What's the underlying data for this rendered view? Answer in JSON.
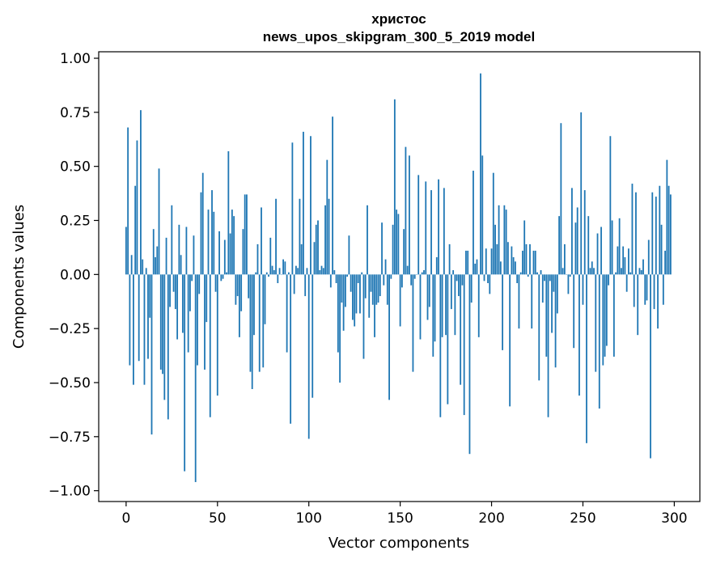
{
  "chart_data": {
    "type": "bar",
    "title_line1": "христос",
    "title_line2": "news_upos_skipgram_300_5_2019 model",
    "xlabel": "Vector components",
    "ylabel": "Components values",
    "xlim": [
      -15,
      314
    ],
    "ylim": [
      -1.05,
      1.03
    ],
    "xticks": [
      0,
      50,
      100,
      150,
      200,
      250,
      300
    ],
    "xtick_labels": [
      "0",
      "50",
      "100",
      "150",
      "200",
      "250",
      "300"
    ],
    "yticks": [
      1.0,
      0.75,
      0.5,
      0.25,
      0.0,
      -0.25,
      -0.5,
      -0.75,
      -1.0
    ],
    "ytick_labels": [
      "1.00",
      "0.75",
      "0.50",
      "0.25",
      "0.00",
      "−0.25",
      "−0.50",
      "−0.75",
      "−1.00"
    ],
    "color": "#1f77b4",
    "values": [
      0.22,
      0.68,
      -0.42,
      0.09,
      -0.51,
      0.41,
      0.62,
      -0.4,
      0.76,
      0.07,
      -0.51,
      0.03,
      -0.39,
      -0.2,
      -0.74,
      0.21,
      0.08,
      0.13,
      0.49,
      -0.44,
      -0.46,
      -0.58,
      0.17,
      -0.67,
      -0.15,
      0.32,
      -0.08,
      -0.16,
      -0.3,
      0.23,
      0.09,
      -0.27,
      -0.91,
      0.22,
      -0.36,
      -0.17,
      -0.03,
      0.18,
      -0.96,
      -0.42,
      -0.09,
      0.38,
      0.47,
      -0.44,
      -0.22,
      0.3,
      -0.66,
      0.39,
      0.29,
      -0.08,
      -0.56,
      0.2,
      -0.03,
      -0.02,
      0.16,
      0.01,
      0.57,
      0.19,
      0.3,
      0.27,
      -0.14,
      -0.1,
      -0.29,
      -0.17,
      0.21,
      0.37,
      0.37,
      -0.11,
      -0.45,
      -0.53,
      -0.28,
      0.01,
      0.14,
      -0.45,
      0.31,
      -0.43,
      -0.23,
      0.01,
      -0.01,
      0.17,
      0.04,
      0.02,
      0.35,
      -0.04,
      0.03,
      0.0,
      0.07,
      0.06,
      -0.36,
      0.01,
      -0.69,
      0.61,
      -0.09,
      0.04,
      0.03,
      0.35,
      0.14,
      0.66,
      -0.1,
      0.03,
      -0.76,
      0.64,
      -0.57,
      0.15,
      0.23,
      0.25,
      0.02,
      0.04,
      0.03,
      0.32,
      0.53,
      0.35,
      -0.06,
      0.73,
      0.02,
      -0.04,
      -0.36,
      -0.5,
      -0.13,
      -0.26,
      -0.15,
      -0.01,
      0.18,
      -0.08,
      -0.21,
      -0.24,
      -0.18,
      -0.04,
      -0.18,
      0.01,
      -0.39,
      -0.11,
      0.32,
      -0.2,
      -0.08,
      -0.14,
      -0.29,
      -0.14,
      -0.13,
      -0.1,
      0.24,
      -0.05,
      0.07,
      -0.14,
      -0.58,
      -0.02,
      0.23,
      0.81,
      0.3,
      0.28,
      -0.24,
      -0.06,
      0.21,
      0.59,
      0.04,
      0.55,
      -0.05,
      -0.45,
      -0.02,
      0.0,
      0.46,
      -0.3,
      0.01,
      0.02,
      0.43,
      -0.21,
      -0.15,
      0.39,
      -0.38,
      -0.31,
      0.08,
      0.44,
      -0.66,
      -0.29,
      0.4,
      -0.28,
      -0.6,
      0.14,
      -0.16,
      0.02,
      -0.28,
      -0.03,
      -0.1,
      -0.51,
      -0.05,
      -0.65,
      0.11,
      0.11,
      -0.83,
      -0.13,
      0.48,
      0.05,
      0.07,
      -0.29,
      0.93,
      0.55,
      -0.03,
      0.12,
      -0.04,
      -0.09,
      0.12,
      0.47,
      0.23,
      0.14,
      0.32,
      0.06,
      -0.35,
      0.32,
      0.3,
      0.15,
      -0.61,
      0.13,
      0.08,
      0.06,
      -0.04,
      -0.25,
      0.01,
      0.11,
      0.25,
      0.14,
      -0.01,
      0.14,
      -0.25,
      0.11,
      0.11,
      0.01,
      -0.49,
      0.02,
      -0.13,
      -0.03,
      -0.38,
      -0.66,
      -0.03,
      -0.27,
      -0.08,
      -0.43,
      -0.18,
      0.27,
      0.7,
      0.03,
      0.14,
      0.0,
      -0.09,
      -0.01,
      0.4,
      -0.34,
      0.24,
      0.31,
      -0.56,
      0.75,
      -0.14,
      0.39,
      -0.78,
      0.27,
      0.03,
      0.06,
      0.03,
      -0.45,
      0.19,
      -0.62,
      0.22,
      -0.42,
      -0.38,
      -0.33,
      -0.05,
      0.64,
      0.25,
      -0.38,
      0.01,
      0.13,
      0.26,
      0.03,
      0.13,
      0.08,
      -0.08,
      0.12,
      0.01,
      0.42,
      -0.15,
      0.38,
      -0.28,
      0.03,
      0.02,
      0.07,
      -0.14,
      -0.12,
      0.16,
      -0.85,
      0.38,
      -0.16,
      0.36,
      -0.25,
      0.41,
      0.23,
      -0.14,
      0.11,
      0.53,
      0.41,
      0.37
    ]
  }
}
